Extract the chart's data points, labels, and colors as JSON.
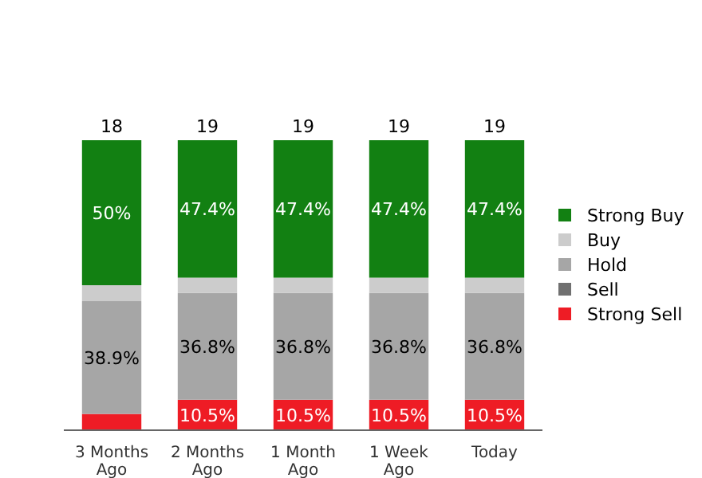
{
  "chart_data": {
    "type": "bar",
    "stacked": true,
    "categories": [
      "3 Months\nAgo",
      "2 Months\nAgo",
      "1 Month\nAgo",
      "1 Week\nAgo",
      "Today"
    ],
    "series": [
      {
        "name": "Strong Sell",
        "color": "#ee1c25",
        "values": [
          5.6,
          10.5,
          10.5,
          10.5,
          10.5
        ],
        "value_labels": [
          null,
          "10.5%",
          "10.5%",
          "10.5%",
          "10.5%"
        ]
      },
      {
        "name": "Sell",
        "color": "#707070",
        "values": [
          null,
          null,
          null,
          null,
          null
        ]
      },
      {
        "name": "Hold",
        "color": "#a6a6a6",
        "values": [
          38.9,
          36.8,
          36.8,
          36.8,
          36.8
        ],
        "value_labels": [
          "38.9%",
          "36.8%",
          "36.8%",
          "36.8%",
          "36.8%"
        ]
      },
      {
        "name": "Buy",
        "color": "#cccccc",
        "values": [
          5.5,
          5.3,
          5.3,
          5.3,
          5.3
        ]
      },
      {
        "name": "Strong Buy",
        "color": "#128012",
        "values": [
          50,
          47.4,
          47.4,
          47.4,
          47.4
        ],
        "value_labels": [
          "50%",
          "47.4%",
          "47.4%",
          "47.4%",
          "47.4%"
        ]
      }
    ],
    "annotations": [
      "18",
      "19",
      "19",
      "19",
      "19"
    ],
    "legend": "right"
  }
}
